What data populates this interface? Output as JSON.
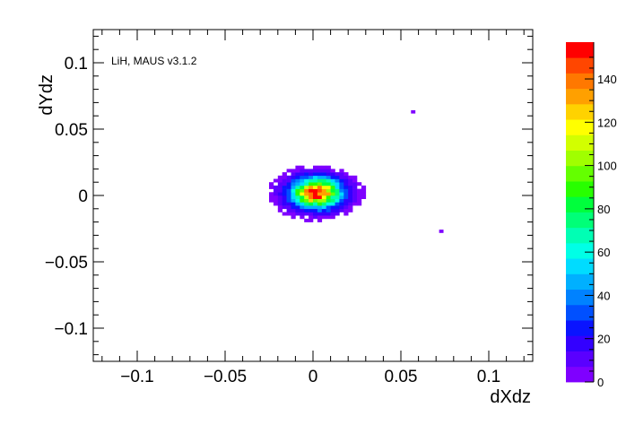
{
  "chart_data": {
    "type": "heatmap",
    "title": "",
    "annotation": "LiH, MAUS v3.1.2",
    "xlabel": "dXdz",
    "ylabel": "dYdz",
    "xlim": [
      -0.125,
      0.125
    ],
    "ylim": [
      -0.125,
      0.125
    ],
    "x_ticks": [
      -0.1,
      -0.05,
      0,
      0.05,
      0.1
    ],
    "x_tick_labels": [
      "−0.1",
      "−0.05",
      "0",
      "0.05",
      "0.1"
    ],
    "y_ticks": [
      -0.1,
      -0.05,
      0,
      0.05,
      0.1
    ],
    "y_tick_labels": [
      "−0.1",
      "−0.05",
      "0",
      "0.05",
      "0.1"
    ],
    "bin_width": 0.0025,
    "grid": false,
    "colorbar": {
      "min": 0,
      "max": 157,
      "ticks": [
        0,
        20,
        40,
        60,
        80,
        100,
        120,
        140
      ],
      "tick_labels": [
        "0",
        "20",
        "40",
        "60",
        "80",
        "100",
        "120",
        "140"
      ],
      "colors": [
        "#7f00ff",
        "#5a00ff",
        "#3300ff",
        "#0a14ff",
        "#0050ff",
        "#0082ff",
        "#00b0ff",
        "#00dcff",
        "#00ffe6",
        "#00ffb4",
        "#00ff78",
        "#00ff3c",
        "#28ff00",
        "#64ff00",
        "#a0ff00",
        "#d2ff00",
        "#ffff00",
        "#ffd200",
        "#ffa000",
        "#ff7800",
        "#ff4600",
        "#ff0000"
      ]
    },
    "core": {
      "center": [
        0.002,
        0.002
      ],
      "sigma": [
        0.0095,
        0.0075
      ],
      "peak": 150,
      "radius": [
        0.027,
        0.021
      ]
    },
    "outliers": [
      {
        "x": 0.057,
        "y": 0.063,
        "value": 1
      },
      {
        "x": 0.073,
        "y": -0.027,
        "value": 1
      }
    ]
  }
}
